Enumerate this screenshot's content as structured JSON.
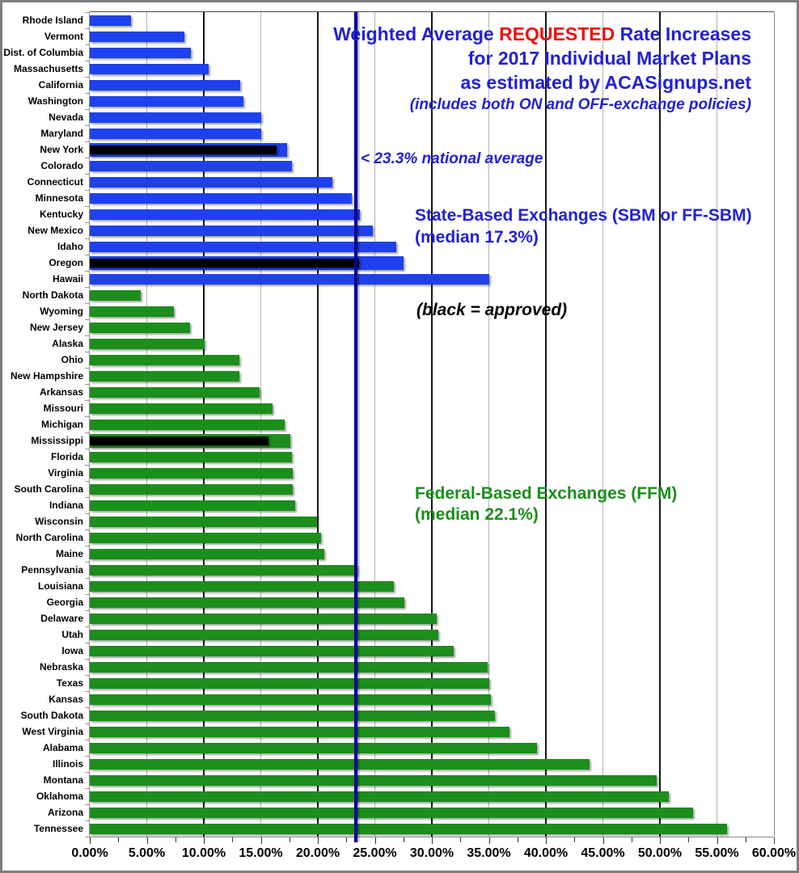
{
  "colors": {
    "bar_blue": "#1e41ed",
    "bar_green": "#1b8e1b",
    "approved_black": "#000000",
    "title_blue": "#2121d8",
    "highlight_red": "#ee1111",
    "reference_navy": "#000099"
  },
  "title": {
    "line1_pre": "Weighted Average ",
    "line1_highlight": "REQUESTED",
    "line1_post": " Rate Increases",
    "line2": "for 2017 Individual Market Plans",
    "line3": "as estimated by ACASignups.net",
    "line4": "(includes both ON and OFF-exchange policies)"
  },
  "chart_data": {
    "type": "bar",
    "orientation": "horizontal",
    "xlim": [
      0,
      60
    ],
    "grid": "vertical gridlines: minor every 5%, major (black) every 10%",
    "x_axis": {
      "max": 60,
      "ticks": [
        {
          "value": 0,
          "label": "0.00%"
        },
        {
          "value": 5,
          "label": "5.00%"
        },
        {
          "value": 10,
          "label": "10.00%"
        },
        {
          "value": 15,
          "label": "15.00%"
        },
        {
          "value": 20,
          "label": "20.00%"
        },
        {
          "value": 25,
          "label": "25.00%"
        },
        {
          "value": 30,
          "label": "30.00%"
        },
        {
          "value": 35,
          "label": "35.00%"
        },
        {
          "value": 40,
          "label": "40.00%"
        },
        {
          "value": 45,
          "label": "45.00%"
        },
        {
          "value": 50,
          "label": "50.00%"
        },
        {
          "value": 55,
          "label": "55.00%"
        },
        {
          "value": 60,
          "label": "60.00%"
        }
      ]
    },
    "reference_line": {
      "value": 23.3,
      "label": "< 23.3% national average",
      "color": "#000099"
    },
    "approved_note": "(black = approved)",
    "approved_color": "#000000",
    "groups": [
      {
        "label": "State-Based Exchanges (SBM or FF-SBM)",
        "median_label": "(median 17.3%)",
        "bar_color": "#1e41ed",
        "label_color": "#2121d8",
        "states": [
          {
            "name": "Rhode Island",
            "requested": 3.6
          },
          {
            "name": "Vermont",
            "requested": 8.3
          },
          {
            "name": "Dist. of Columbia",
            "requested": 8.9
          },
          {
            "name": "Massachusetts",
            "requested": 10.4
          },
          {
            "name": "California",
            "requested": 13.2
          },
          {
            "name": "Washington",
            "requested": 13.5
          },
          {
            "name": "Nevada",
            "requested": 15.0
          },
          {
            "name": "Maryland",
            "requested": 15.0
          },
          {
            "name": "New York",
            "requested": 17.3,
            "approved": 16.4
          },
          {
            "name": "Colorado",
            "requested": 17.7
          },
          {
            "name": "Connecticut",
            "requested": 21.3
          },
          {
            "name": "Minnesota",
            "requested": 23.0
          },
          {
            "name": "Kentucky",
            "requested": 23.7
          },
          {
            "name": "New Mexico",
            "requested": 24.8
          },
          {
            "name": "Idaho",
            "requested": 26.9
          },
          {
            "name": "Oregon",
            "requested": 27.5,
            "approved": 23.6
          },
          {
            "name": "Hawaii",
            "requested": 35.0
          }
        ]
      },
      {
        "label": "Federal-Based Exchanges (FFM)",
        "median_label": "(median 22.1%)",
        "bar_color": "#1b8e1b",
        "label_color": "#1b8e1b",
        "states": [
          {
            "name": "North Dakota",
            "requested": 4.5
          },
          {
            "name": "Wyoming",
            "requested": 7.4
          },
          {
            "name": "New Jersey",
            "requested": 8.8
          },
          {
            "name": "Alaska",
            "requested": 10.1
          },
          {
            "name": "Ohio",
            "requested": 13.1
          },
          {
            "name": "New Hampshire",
            "requested": 13.1
          },
          {
            "name": "Arkansas",
            "requested": 14.9
          },
          {
            "name": "Missouri",
            "requested": 16.0
          },
          {
            "name": "Michigan",
            "requested": 17.1
          },
          {
            "name": "Mississippi",
            "requested": 17.6,
            "approved": 15.7
          },
          {
            "name": "Florida",
            "requested": 17.7
          },
          {
            "name": "Virginia",
            "requested": 17.8
          },
          {
            "name": "South Carolina",
            "requested": 17.8
          },
          {
            "name": "Indiana",
            "requested": 18.0
          },
          {
            "name": "Wisconsin",
            "requested": 19.9
          },
          {
            "name": "North Carolina",
            "requested": 20.3
          },
          {
            "name": "Maine",
            "requested": 20.6
          },
          {
            "name": "Pennsylvania",
            "requested": 23.5
          },
          {
            "name": "Louisiana",
            "requested": 26.7
          },
          {
            "name": "Georgia",
            "requested": 27.6
          },
          {
            "name": "Delaware",
            "requested": 30.4
          },
          {
            "name": "Utah",
            "requested": 30.6
          },
          {
            "name": "Iowa",
            "requested": 31.9
          },
          {
            "name": "Nebraska",
            "requested": 34.9
          },
          {
            "name": "Texas",
            "requested": 35.0
          },
          {
            "name": "Kansas",
            "requested": 35.2
          },
          {
            "name": "South Dakota",
            "requested": 35.5
          },
          {
            "name": "West Virginia",
            "requested": 36.8
          },
          {
            "name": "Alabama",
            "requested": 39.2
          },
          {
            "name": "Illinois",
            "requested": 43.8
          },
          {
            "name": "Montana",
            "requested": 49.7
          },
          {
            "name": "Oklahoma",
            "requested": 50.8
          },
          {
            "name": "Arizona",
            "requested": 52.9
          },
          {
            "name": "Tennessee",
            "requested": 55.9
          }
        ]
      }
    ]
  }
}
